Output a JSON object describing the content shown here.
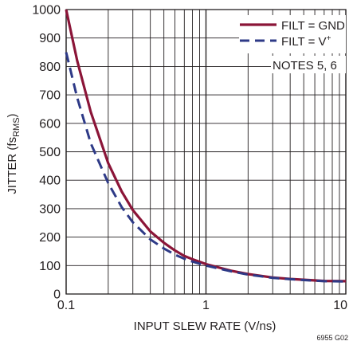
{
  "chart_data": {
    "type": "line",
    "xscale": "log",
    "xlim": [
      0.1,
      10
    ],
    "ylim": [
      0,
      1000
    ],
    "x_ticks": [
      0.1,
      1,
      10
    ],
    "x_tick_labels": [
      "0.1",
      "1",
      "10"
    ],
    "y_ticks": [
      0,
      100,
      200,
      300,
      400,
      500,
      600,
      700,
      800,
      900,
      1000
    ],
    "y_tick_labels": [
      "0",
      "100",
      "200",
      "300",
      "400",
      "500",
      "600",
      "700",
      "800",
      "900",
      "1000"
    ],
    "xlabel": "INPUT SLEW RATE (V/ns)",
    "ylabel": {
      "main": "JITTER (fs",
      "sub": "RMS",
      "close": ")"
    },
    "grid": true,
    "legend_position": "top-right",
    "series": [
      {
        "name": "FILT = GND",
        "color": "#8b1538",
        "dash": "solid",
        "x": [
          0.1,
          0.12,
          0.15,
          0.2,
          0.25,
          0.3,
          0.4,
          0.5,
          0.6,
          0.7,
          0.8,
          1,
          1.5,
          2,
          3,
          4,
          5,
          7,
          10
        ],
        "y": [
          1000,
          820,
          640,
          460,
          360,
          295,
          220,
          180,
          153,
          134,
          122,
          105,
          82,
          70,
          58,
          53,
          50,
          46,
          45
        ]
      },
      {
        "name_main": "FILT = V",
        "name_sup": "+",
        "color": "#2e3a87",
        "dash": "dashed",
        "x": [
          0.1,
          0.12,
          0.15,
          0.2,
          0.25,
          0.3,
          0.4,
          0.5,
          0.6,
          0.7,
          0.8,
          1,
          1.5,
          2,
          3,
          4,
          5,
          7,
          10
        ],
        "y": [
          850,
          690,
          530,
          390,
          305,
          252,
          192,
          160,
          138,
          124,
          114,
          100,
          80,
          68,
          57,
          52,
          49,
          45,
          44
        ]
      }
    ],
    "annotation": "NOTES 5, 6",
    "figure_id": "6955 G02"
  }
}
